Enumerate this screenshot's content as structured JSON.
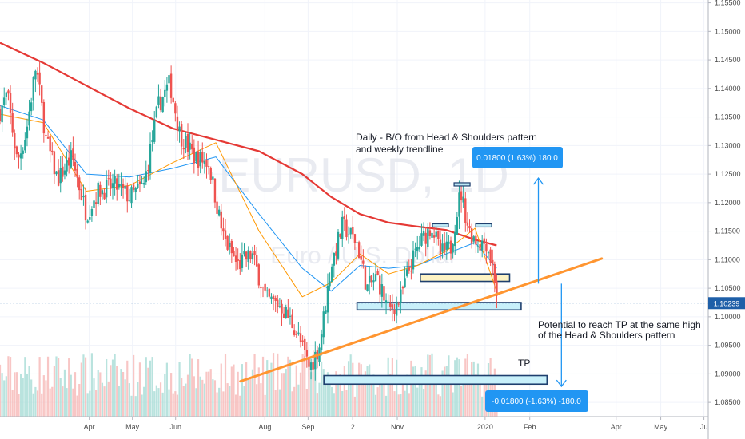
{
  "chart_data": {
    "type": "candlestick",
    "symbol": "EURUSD, 1D",
    "watermark_sub": "Euro / U.S. Dollar",
    "title": "",
    "xlabel": "",
    "ylabel": "",
    "y_ticks": [
      "1.15500",
      "1.15000",
      "1.14500",
      "1.14000",
      "1.13500",
      "1.13000",
      "1.12500",
      "1.12000",
      "1.11500",
      "1.11000",
      "1.10500",
      "1.10000",
      "1.09500",
      "1.09000",
      "1.08500"
    ],
    "y_tick_values": [
      1.155,
      1.15,
      1.145,
      1.14,
      1.135,
      1.13,
      1.125,
      1.12,
      1.115,
      1.11,
      1.105,
      1.1,
      1.095,
      1.09,
      1.085
    ],
    "ylim": [
      1.0825,
      1.1555
    ],
    "x_ticks": [
      "Apr",
      "May",
      "Jun",
      "Aug",
      "Sep",
      "2",
      "Nov",
      "2020",
      "Feb",
      "Apr",
      "May",
      "Ju"
    ],
    "x_tick_days": [
      62,
      92,
      122,
      184,
      214,
      245,
      276,
      337,
      368,
      428,
      459,
      489
    ],
    "xlim": [
      0,
      492
    ],
    "last_price": "1.10239",
    "last_price_value": 1.10239,
    "colors": {
      "up": "#26a69a",
      "down": "#ef5350",
      "ma_long": "#e53935",
      "ma_mid": "#2196f3",
      "ma_short": "#ff9800",
      "trendline": "#ff9530",
      "zone_blue": "#c8f0fa",
      "zone_yellow": "#fdf3c4",
      "box": "#2196f3"
    },
    "ma_long": [
      [
        0,
        1.148
      ],
      [
        30,
        1.1445
      ],
      [
        60,
        1.1405
      ],
      [
        90,
        1.1365
      ],
      [
        120,
        1.133
      ],
      [
        150,
        1.131
      ],
      [
        180,
        1.129
      ],
      [
        210,
        1.125
      ],
      [
        230,
        1.121
      ],
      [
        250,
        1.118
      ],
      [
        270,
        1.1165
      ],
      [
        290,
        1.1158
      ],
      [
        310,
        1.1152
      ],
      [
        330,
        1.1135
      ],
      [
        345,
        1.1125
      ]
    ],
    "ma_mid": [
      [
        0,
        1.137
      ],
      [
        30,
        1.1345
      ],
      [
        60,
        1.125
      ],
      [
        90,
        1.1245
      ],
      [
        120,
        1.126
      ],
      [
        150,
        1.128
      ],
      [
        180,
        1.118
      ],
      [
        210,
        1.1085
      ],
      [
        230,
        1.1045
      ],
      [
        250,
        1.109
      ],
      [
        270,
        1.1085
      ],
      [
        290,
        1.109
      ],
      [
        310,
        1.111
      ],
      [
        330,
        1.113
      ],
      [
        345,
        1.1085
      ]
    ],
    "ma_short": [
      [
        0,
        1.1355
      ],
      [
        30,
        1.134
      ],
      [
        60,
        1.122
      ],
      [
        90,
        1.123
      ],
      [
        120,
        1.127
      ],
      [
        150,
        1.1305
      ],
      [
        180,
        1.115
      ],
      [
        210,
        1.1035
      ],
      [
        230,
        1.106
      ],
      [
        250,
        1.111
      ],
      [
        270,
        1.1075
      ],
      [
        290,
        1.109
      ],
      [
        310,
        1.1115
      ],
      [
        330,
        1.1155
      ],
      [
        345,
        1.1045
      ]
    ],
    "trendline": [
      [
        167,
        1.0887
      ],
      [
        418,
        1.1102
      ]
    ],
    "zones": [
      {
        "name": "neckline-zone",
        "color": "zone_yellow",
        "d0": 292,
        "d1": 354,
        "y0": 1.1062,
        "y1": 1.1075
      },
      {
        "name": "retest-zone",
        "color": "zone_blue",
        "d0": 248,
        "d1": 362,
        "y0": 1.1012,
        "y1": 1.1025
      },
      {
        "name": "tp-zone",
        "color": "zone_blue",
        "d0": 225,
        "d1": 380,
        "y0": 1.0882,
        "y1": 1.0897
      }
    ],
    "shoulder_marks": [
      {
        "d": 306,
        "y": 1.116
      },
      {
        "d": 321,
        "y": 1.1232
      },
      {
        "d": 336,
        "y": 1.116
      }
    ],
    "arrows": [
      {
        "name": "target-up-arrow",
        "d": 374,
        "from": 1.1058,
        "to": 1.1243
      },
      {
        "name": "target-down-arrow",
        "d": 390,
        "from": 1.1058,
        "to": 1.0878
      }
    ],
    "annotations": {
      "main_line1": "Daily - B/O from Head & Shoulders pattern",
      "main_line2": "and weekly trendline",
      "potential_line1": "Potential to reach TP at the same high",
      "potential_line2": "of the Head & Shoulders pattern",
      "tp_label": "TP",
      "box_up": "0.01800 (1.63%) 180.0",
      "box_down": "-0.01800 (-1.63%) -180.0"
    }
  }
}
